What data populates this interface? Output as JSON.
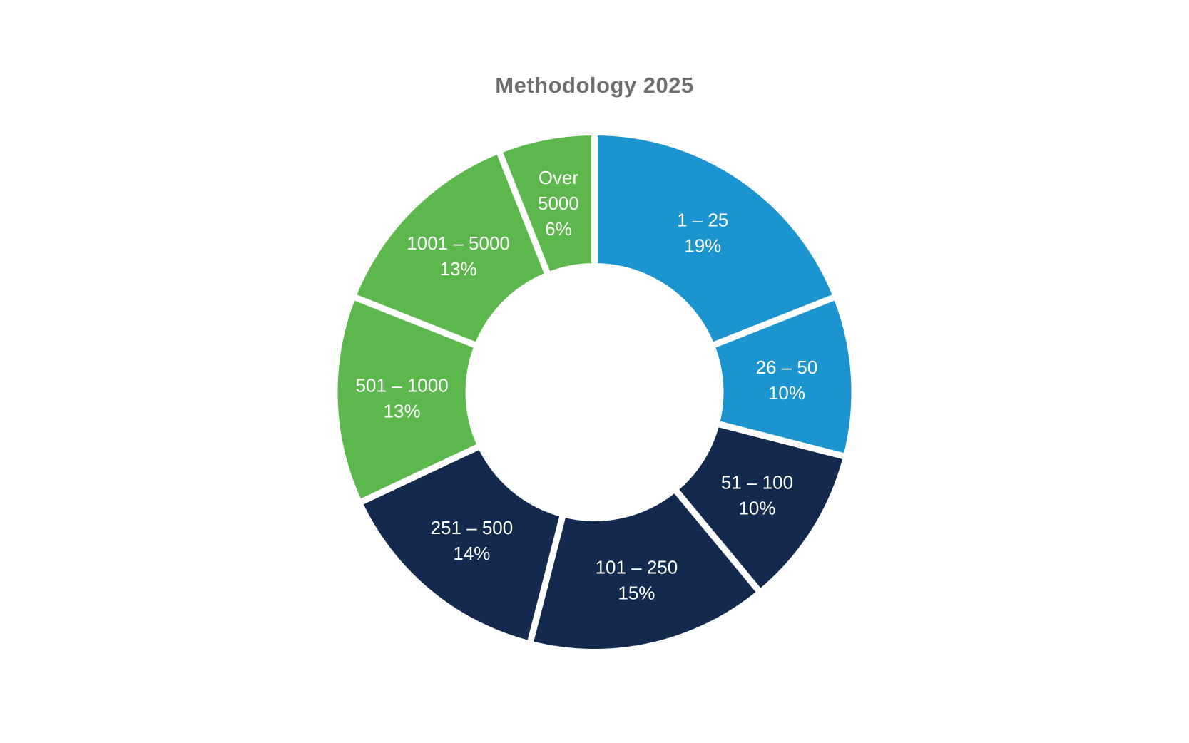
{
  "title": "Methodology 2025",
  "colors": {
    "light_blue": "#1b94d0",
    "navy": "#13294d",
    "green": "#5cb84c",
    "title_gray": "#6d6e71",
    "background": "#ffffff",
    "segment_label_text": "#ffffff",
    "segment_gap": "#ffffff"
  },
  "chart_data": {
    "type": "pie",
    "subtype": "donut",
    "title": "Methodology 2025",
    "unit": "%",
    "direction": "clockwise",
    "start_angle_deg": 0,
    "inner_radius_ratio": 0.5,
    "legend_position": "none",
    "labels_inside": true,
    "categories": [
      "1 – 25",
      "26 – 50",
      "51 – 100",
      "101 – 250",
      "251 – 500",
      "501 – 1000",
      "1001 – 5000",
      "Over 5000"
    ],
    "values": [
      19,
      10,
      10,
      15,
      14,
      13,
      13,
      6
    ],
    "segments": [
      {
        "label": "1 – 25",
        "value": 19,
        "color": "#1b94d0",
        "label_lines": [
          "1 – 25",
          "19%"
        ]
      },
      {
        "label": "26 – 50",
        "value": 10,
        "color": "#1b94d0",
        "label_lines": [
          "26 – 50",
          "10%"
        ]
      },
      {
        "label": "51 – 100",
        "value": 10,
        "color": "#13294d",
        "label_lines": [
          "51 – 100",
          "10%"
        ]
      },
      {
        "label": "101 – 250",
        "value": 15,
        "color": "#13294d",
        "label_lines": [
          "101 – 250",
          "15%"
        ]
      },
      {
        "label": "251 – 500",
        "value": 14,
        "color": "#13294d",
        "label_lines": [
          "251 – 500",
          "14%"
        ]
      },
      {
        "label": "501 – 1000",
        "value": 13,
        "color": "#5cb84c",
        "label_lines": [
          "501 – 1000",
          "13%"
        ]
      },
      {
        "label": "1001 – 5000",
        "value": 13,
        "color": "#5cb84c",
        "label_lines": [
          "1001 – 5000",
          "13%"
        ]
      },
      {
        "label": "Over 5000",
        "value": 6,
        "color": "#5cb84c",
        "label_lines": [
          "Over",
          "5000",
          "6%"
        ]
      }
    ]
  }
}
